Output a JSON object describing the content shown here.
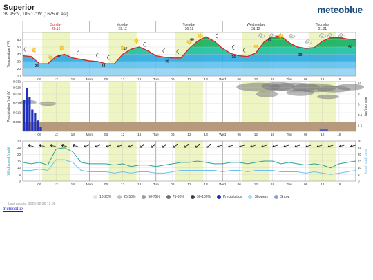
{
  "header": {
    "location": "Superior",
    "coordinates": "39.95°N, 105.17°W (1675 m asl)",
    "brand": "meteoblue"
  },
  "days": [
    {
      "name": "Sunday",
      "date": "28.12",
      "highlight": true
    },
    {
      "name": "Monday",
      "date": "29.12",
      "highlight": false
    },
    {
      "name": "Tuesday",
      "date": "30.12",
      "highlight": false
    },
    {
      "name": "Wednesday",
      "date": "31.12",
      "highlight": false
    },
    {
      "name": "Thursday",
      "date": "01.01",
      "highlight": false
    }
  ],
  "hour_ticks": [
    "06",
    "12",
    "18",
    "Mon",
    "06",
    "12",
    "18",
    "Tue",
    "06",
    "12",
    "18",
    "Wed",
    "06",
    "12",
    "18",
    "Thu",
    "06",
    "12",
    "18"
  ],
  "icons": {
    "sun": "sun-icon",
    "moon": "moon-icon",
    "cloud": "cloud-icon",
    "wind_arrow": "wind-direction-arrow-icon"
  },
  "colors": {
    "temperature_line": "#d62728",
    "daylight": "#eef5c2",
    "precip_bar": "#1f2fc0",
    "wind_line": "#2aa198",
    "gust_line": "#6cc0f0",
    "ground": "#b59a7e",
    "day_label_sunday": "#d62728",
    "last_update": "#999999",
    "brand": "#1b4a7a"
  },
  "chart_data": [
    {
      "type": "area",
      "ylabel": "Temperature (°F)",
      "ylim": [
        10,
        70
      ],
      "yticks": [
        10,
        20,
        30,
        40,
        50,
        60
      ],
      "x_unit": "hours from Sunday 00:00",
      "xlim": [
        0,
        120
      ],
      "series": [
        {
          "points": [
            [
              0,
              38
            ],
            [
              3,
              37
            ],
            [
              6,
              27
            ],
            [
              9,
              27
            ],
            [
              12,
              37
            ],
            [
              15,
              40
            ],
            [
              18,
              35
            ],
            [
              21,
              33
            ],
            [
              24,
              31
            ],
            [
              27,
              30
            ],
            [
              30,
              27
            ],
            [
              33,
              27
            ],
            [
              36,
              40
            ],
            [
              39,
              47
            ],
            [
              42,
              50
            ],
            [
              45,
              45
            ],
            [
              48,
              38
            ],
            [
              51,
              36
            ],
            [
              54,
              35
            ],
            [
              57,
              35
            ],
            [
              60,
              48
            ],
            [
              63,
              58
            ],
            [
              66,
              64
            ],
            [
              69,
              58
            ],
            [
              72,
              48
            ],
            [
              75,
              41
            ],
            [
              78,
              38
            ],
            [
              81,
              37
            ],
            [
              84,
              42
            ],
            [
              87,
              57
            ],
            [
              90,
              65
            ],
            [
              93,
              65
            ],
            [
              96,
              56
            ],
            [
              99,
              50
            ],
            [
              102,
              48
            ],
            [
              105,
              49
            ],
            [
              108,
              58
            ],
            [
              111,
              63
            ],
            [
              114,
              63
            ],
            [
              117,
              61
            ],
            [
              120,
              60
            ]
          ]
        }
      ],
      "labels": [
        {
          "x": 5,
          "y": 24,
          "text": "24"
        },
        {
          "x": 13,
          "y": 37,
          "text": "37"
        },
        {
          "x": 29,
          "y": 24,
          "text": "24"
        },
        {
          "x": 37,
          "y": 47,
          "text": "47"
        },
        {
          "x": 52,
          "y": 30,
          "text": "30"
        },
        {
          "x": 61,
          "y": 60,
          "text": "60"
        },
        {
          "x": 76,
          "y": 36,
          "text": "36"
        },
        {
          "x": 89,
          "y": 60,
          "text": "60"
        },
        {
          "x": 100,
          "y": 39,
          "text": "39"
        },
        {
          "x": 118,
          "y": 50,
          "text": "50"
        }
      ]
    },
    {
      "type": "bar",
      "ylabel": "Precipitation (inch/h)",
      "y2label": "Altitude (km)",
      "ylim": [
        0,
        0.032
      ],
      "yticks": [
        0.006,
        0.012,
        0.018,
        0.024,
        0.028,
        0.032
      ],
      "y2ticks": [
        1.5,
        3.5,
        6.0,
        9.0,
        14
      ],
      "values": [
        {
          "x": 0.5,
          "y": 0.02
        },
        {
          "x": 1.5,
          "y": 0.028
        },
        {
          "x": 2.5,
          "y": 0.022
        },
        {
          "x": 3.5,
          "y": 0.014
        },
        {
          "x": 4.5,
          "y": 0.012
        },
        {
          "x": 5.5,
          "y": 0.007
        },
        {
          "x": 6.5,
          "y": 0.003
        }
      ]
    },
    {
      "type": "line",
      "ylabel": "Wind speed (mph)",
      "y2label": "Wind gust (mph)",
      "ylim": [
        0,
        30
      ],
      "yticks": [
        0,
        5,
        10,
        15,
        20,
        25,
        30
      ],
      "series": [
        {
          "points": [
            [
              0,
              14
            ],
            [
              3,
              13
            ],
            [
              6,
              14
            ],
            [
              9,
              12
            ],
            [
              12,
              24
            ],
            [
              15,
              25
            ],
            [
              18,
              22
            ],
            [
              21,
              14
            ],
            [
              24,
              13
            ],
            [
              27,
              13
            ],
            [
              30,
              13
            ],
            [
              33,
              12
            ],
            [
              36,
              13
            ],
            [
              39,
              11
            ],
            [
              42,
              12
            ],
            [
              45,
              12
            ],
            [
              48,
              11
            ],
            [
              51,
              12
            ],
            [
              54,
              13
            ],
            [
              57,
              14
            ],
            [
              60,
              14
            ],
            [
              63,
              15
            ],
            [
              66,
              14
            ],
            [
              69,
              13
            ],
            [
              72,
              13
            ],
            [
              75,
              14
            ],
            [
              78,
              14
            ],
            [
              81,
              13
            ],
            [
              84,
              14
            ],
            [
              87,
              15
            ],
            [
              90,
              15
            ],
            [
              93,
              13
            ],
            [
              96,
              14
            ],
            [
              99,
              13
            ],
            [
              102,
              12
            ],
            [
              105,
              13
            ],
            [
              108,
              12
            ],
            [
              111,
              10
            ],
            [
              114,
              13
            ],
            [
              117,
              14
            ],
            [
              120,
              15
            ]
          ]
        },
        {
          "points": [
            [
              0,
              8
            ],
            [
              3,
              8
            ],
            [
              6,
              9
            ],
            [
              9,
              8
            ],
            [
              12,
              16
            ],
            [
              15,
              16
            ],
            [
              18,
              14
            ],
            [
              21,
              8
            ],
            [
              24,
              7
            ],
            [
              27,
              7
            ],
            [
              30,
              7
            ],
            [
              33,
              6
            ],
            [
              36,
              7
            ],
            [
              39,
              6
            ],
            [
              42,
              7
            ],
            [
              45,
              7
            ],
            [
              48,
              6
            ],
            [
              51,
              6
            ],
            [
              54,
              7
            ],
            [
              57,
              8
            ],
            [
              60,
              8
            ],
            [
              63,
              8
            ],
            [
              66,
              8
            ],
            [
              69,
              8
            ],
            [
              72,
              7
            ],
            [
              75,
              8
            ],
            [
              78,
              8
            ],
            [
              81,
              7
            ],
            [
              84,
              8
            ],
            [
              87,
              8
            ],
            [
              90,
              8
            ],
            [
              93,
              7
            ],
            [
              96,
              7
            ],
            [
              99,
              7
            ],
            [
              102,
              6
            ],
            [
              105,
              7
            ],
            [
              108,
              6
            ],
            [
              111,
              5
            ],
            [
              114,
              6
            ],
            [
              117,
              7
            ],
            [
              120,
              8
            ]
          ]
        }
      ]
    }
  ],
  "legend": [
    {
      "label": "10-25%",
      "color": "#e4e4e4"
    },
    {
      "label": "25-50%",
      "color": "#c0c0c0"
    },
    {
      "label": "50-75%",
      "color": "#9a9a9a"
    },
    {
      "label": "75-90%",
      "color": "#707070"
    },
    {
      "label": "90-100%",
      "color": "#444444"
    },
    {
      "label": "Precipitation",
      "color": "#1f2fc0"
    },
    {
      "label": "Showers",
      "color": "#a8e0f6"
    },
    {
      "label": "Snow",
      "color": "#8fa0d0"
    }
  ],
  "footer": {
    "last_update": "Last update: 2025-12-28 15:38",
    "link_text": "meteoblue"
  }
}
